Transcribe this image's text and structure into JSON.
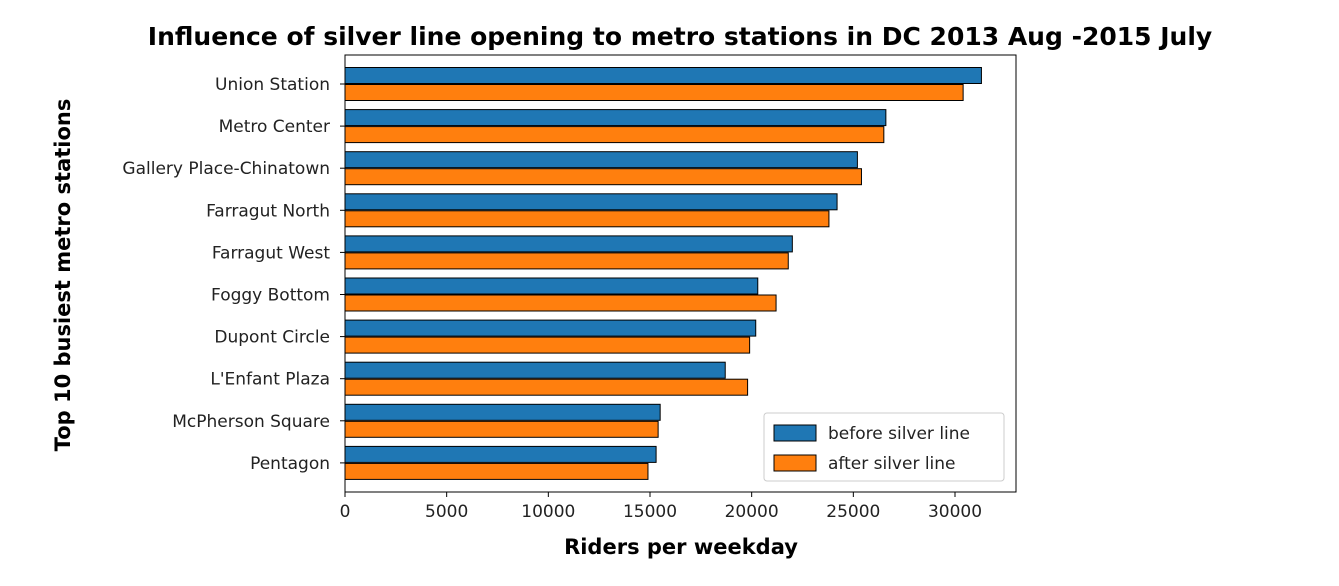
{
  "chart_data": {
    "type": "bar",
    "orientation": "horizontal",
    "title": "Influence of silver line opening to metro stations in DC 2013 Aug -2015 July",
    "xlabel": "Riders per weekday",
    "ylabel": "Top 10 busiest metro stations",
    "xlim": [
      0,
      33000
    ],
    "xticks": [
      0,
      5000,
      10000,
      15000,
      20000,
      25000,
      30000
    ],
    "grid": false,
    "legend_position": "lower-right",
    "categories": [
      "Union Station",
      "Metro Center",
      "Gallery Place-Chinatown",
      "Farragut North",
      "Farragut West",
      "Foggy Bottom",
      "Dupont Circle",
      "L'Enfant Plaza",
      "McPherson Square",
      "Pentagon"
    ],
    "series": [
      {
        "name": "before silver line",
        "color": "#1f77b4",
        "values": [
          31300,
          26600,
          25200,
          24200,
          22000,
          20300,
          20200,
          18700,
          15500,
          15300
        ]
      },
      {
        "name": "after silver line",
        "color": "#ff7f0e",
        "values": [
          30400,
          26500,
          25400,
          23800,
          21800,
          21200,
          19900,
          19800,
          15400,
          14900
        ]
      }
    ]
  }
}
